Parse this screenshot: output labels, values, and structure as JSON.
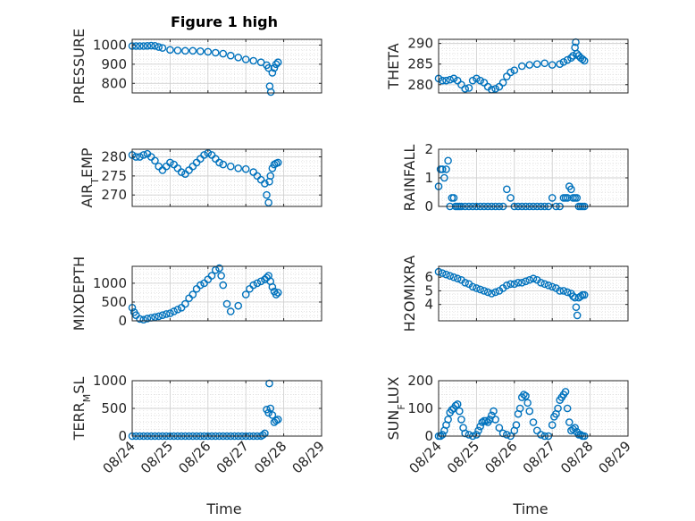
{
  "figure_title": "Figure 1 high",
  "x_tick_labels": [
    "08/24",
    "08/25",
    "08/26",
    "08/27",
    "08/28",
    "08/29"
  ],
  "x_axis_label": "Time",
  "colors": {
    "marker": "#0072BD",
    "axes": "#262626",
    "grid": "#dcdcdc"
  },
  "chart_data": [
    {
      "type": "scatter",
      "ylabel": "PRESSURE",
      "ylabel_sub": "",
      "ylabel_tail": "",
      "title": "Figure 1 high",
      "xlim": [
        0,
        5
      ],
      "ylim": [
        750,
        1030
      ],
      "yticks": [
        800,
        900,
        1000
      ],
      "x": [
        0.0,
        0.1,
        0.2,
        0.3,
        0.4,
        0.5,
        0.6,
        0.7,
        0.8,
        1.0,
        1.2,
        1.4,
        1.6,
        1.8,
        2.0,
        2.2,
        2.4,
        2.6,
        2.8,
        3.0,
        3.2,
        3.4,
        3.55,
        3.6,
        3.63,
        3.66,
        3.7,
        3.75,
        3.8,
        3.85
      ],
      "y": [
        995,
        995,
        995,
        995,
        996,
        997,
        996,
        990,
        985,
        975,
        972,
        970,
        970,
        968,
        965,
        960,
        955,
        945,
        935,
        925,
        918,
        910,
        895,
        880,
        785,
        755,
        855,
        880,
        900,
        910
      ]
    },
    {
      "type": "scatter",
      "ylabel": "THETA",
      "ylabel_sub": "",
      "ylabel_tail": "",
      "xlim": [
        0,
        5
      ],
      "ylim": [
        278,
        291
      ],
      "yticks": [
        280,
        285,
        290
      ],
      "x": [
        0.0,
        0.1,
        0.2,
        0.3,
        0.4,
        0.5,
        0.6,
        0.7,
        0.8,
        0.9,
        1.0,
        1.1,
        1.2,
        1.3,
        1.4,
        1.5,
        1.6,
        1.7,
        1.8,
        1.9,
        2.0,
        2.2,
        2.4,
        2.6,
        2.8,
        3.0,
        3.2,
        3.3,
        3.4,
        3.5,
        3.55,
        3.6,
        3.62,
        3.65,
        3.7,
        3.75,
        3.8,
        3.85
      ],
      "y": [
        281.5,
        281,
        281,
        281.2,
        281.5,
        281,
        280,
        279,
        279.2,
        281,
        281.5,
        281,
        280.5,
        279.5,
        278.8,
        279,
        279.5,
        280.5,
        282,
        283,
        283.5,
        284.5,
        284.8,
        285,
        285.2,
        284.8,
        285,
        285.5,
        286,
        286.5,
        287,
        289,
        290.3,
        287.5,
        287,
        286.5,
        286.2,
        285.8
      ]
    },
    {
      "type": "scatter",
      "ylabel": "AIR",
      "ylabel_sub": "T",
      "ylabel_tail": "EMP",
      "xlim": [
        0,
        5
      ],
      "ylim": [
        267,
        282
      ],
      "yticks": [
        270,
        275,
        280
      ],
      "x": [
        0.0,
        0.1,
        0.2,
        0.3,
        0.4,
        0.5,
        0.6,
        0.7,
        0.8,
        0.9,
        1.0,
        1.1,
        1.2,
        1.3,
        1.4,
        1.5,
        1.6,
        1.7,
        1.8,
        1.9,
        2.0,
        2.1,
        2.2,
        2.3,
        2.4,
        2.6,
        2.8,
        3.0,
        3.2,
        3.3,
        3.4,
        3.5,
        3.55,
        3.6,
        3.62,
        3.65,
        3.7,
        3.75,
        3.8,
        3.85
      ],
      "y": [
        280.5,
        280,
        280,
        280.5,
        280.8,
        280,
        279,
        277.5,
        276.5,
        277.5,
        278.5,
        278,
        277,
        276,
        275.5,
        276.5,
        277.5,
        278.5,
        279.5,
        280.5,
        281,
        280.5,
        279.5,
        278.5,
        278,
        277.5,
        277,
        276.8,
        276,
        275,
        274,
        273,
        270,
        268,
        273.5,
        275,
        277,
        278,
        278.3,
        278.5
      ]
    },
    {
      "type": "scatter",
      "ylabel": "RAINFALL",
      "ylabel_sub": "",
      "ylabel_tail": "",
      "xlim": [
        0,
        5
      ],
      "ylim": [
        0,
        2
      ],
      "yticks": [
        0,
        1,
        2
      ],
      "x": [
        0.0,
        0.05,
        0.1,
        0.15,
        0.2,
        0.25,
        0.3,
        0.35,
        0.4,
        0.45,
        0.5,
        0.55,
        0.6,
        0.7,
        0.8,
        0.9,
        1.0,
        1.1,
        1.2,
        1.3,
        1.4,
        1.5,
        1.6,
        1.7,
        1.8,
        1.9,
        2.0,
        2.1,
        2.2,
        2.3,
        2.4,
        2.5,
        2.6,
        2.7,
        2.8,
        2.9,
        3.0,
        3.1,
        3.2,
        3.3,
        3.35,
        3.4,
        3.45,
        3.5,
        3.55,
        3.6,
        3.65,
        3.7,
        3.75,
        3.8,
        3.85
      ],
      "y": [
        0.7,
        1.3,
        1.3,
        1.0,
        1.3,
        1.6,
        0,
        0.3,
        0.3,
        0,
        0,
        0,
        0,
        0,
        0,
        0,
        0,
        0,
        0,
        0,
        0,
        0,
        0,
        0,
        0.6,
        0.3,
        0,
        0,
        0,
        0,
        0,
        0,
        0,
        0,
        0,
        0,
        0.3,
        0,
        0,
        0.3,
        0.3,
        0.3,
        0.7,
        0.6,
        0.3,
        0.3,
        0.3,
        0,
        0,
        0,
        0
      ]
    },
    {
      "type": "scatter",
      "ylabel": "MIXDEPTH",
      "ylabel_sub": "",
      "ylabel_tail": "",
      "xlim": [
        0,
        5
      ],
      "ylim": [
        0,
        1450
      ],
      "yticks": [
        0,
        500,
        1000
      ],
      "x": [
        0.0,
        0.05,
        0.1,
        0.2,
        0.3,
        0.4,
        0.5,
        0.6,
        0.7,
        0.8,
        0.9,
        1.0,
        1.1,
        1.2,
        1.3,
        1.4,
        1.5,
        1.6,
        1.7,
        1.8,
        1.9,
        2.0,
        2.1,
        2.2,
        2.3,
        2.35,
        2.4,
        2.5,
        2.6,
        2.8,
        3.0,
        3.1,
        3.2,
        3.3,
        3.4,
        3.5,
        3.55,
        3.6,
        3.65,
        3.7,
        3.75,
        3.8,
        3.85
      ],
      "y": [
        350,
        230,
        150,
        50,
        30,
        60,
        80,
        100,
        120,
        150,
        180,
        200,
        250,
        300,
        350,
        450,
        600,
        700,
        850,
        950,
        1000,
        1100,
        1200,
        1350,
        1400,
        1200,
        950,
        450,
        250,
        400,
        700,
        850,
        950,
        1000,
        1050,
        1100,
        1150,
        1200,
        1050,
        900,
        780,
        700,
        750
      ]
    },
    {
      "type": "scatter",
      "ylabel": "H2OMIXRA",
      "ylabel_sub": "",
      "ylabel_tail": "",
      "xlim": [
        0,
        5
      ],
      "ylim": [
        2.8,
        6.8
      ],
      "yticks": [
        4,
        5,
        6
      ],
      "x": [
        0.0,
        0.1,
        0.2,
        0.3,
        0.4,
        0.5,
        0.6,
        0.7,
        0.8,
        0.9,
        1.0,
        1.1,
        1.2,
        1.3,
        1.4,
        1.5,
        1.6,
        1.7,
        1.8,
        1.9,
        2.0,
        2.1,
        2.2,
        2.3,
        2.4,
        2.5,
        2.6,
        2.7,
        2.8,
        2.9,
        3.0,
        3.1,
        3.2,
        3.3,
        3.4,
        3.5,
        3.55,
        3.6,
        3.63,
        3.66,
        3.7,
        3.75,
        3.8,
        3.85
      ],
      "y": [
        6.4,
        6.3,
        6.2,
        6.1,
        6.0,
        5.9,
        5.8,
        5.6,
        5.5,
        5.3,
        5.2,
        5.1,
        5.0,
        4.9,
        4.8,
        4.9,
        5.0,
        5.2,
        5.4,
        5.5,
        5.5,
        5.6,
        5.6,
        5.7,
        5.8,
        5.9,
        5.8,
        5.6,
        5.5,
        5.4,
        5.3,
        5.2,
        5.0,
        5.0,
        4.9,
        4.8,
        4.6,
        4.5,
        3.8,
        3.2,
        4.5,
        4.6,
        4.7,
        4.7
      ]
    },
    {
      "type": "scatter",
      "ylabel": "TERR",
      "ylabel_sub": "M",
      "ylabel_tail": "SL",
      "xlim": [
        0,
        5
      ],
      "ylim": [
        0,
        1000
      ],
      "yticks": [
        0,
        500,
        1000
      ],
      "x": [
        0.0,
        0.1,
        0.2,
        0.3,
        0.4,
        0.5,
        0.6,
        0.7,
        0.8,
        0.9,
        1.0,
        1.1,
        1.2,
        1.3,
        1.4,
        1.5,
        1.6,
        1.7,
        1.8,
        1.9,
        2.0,
        2.1,
        2.2,
        2.3,
        2.4,
        2.5,
        2.6,
        2.7,
        2.8,
        2.9,
        3.0,
        3.1,
        3.2,
        3.3,
        3.4,
        3.45,
        3.5,
        3.55,
        3.6,
        3.62,
        3.65,
        3.7,
        3.75,
        3.8,
        3.85
      ],
      "y": [
        0,
        0,
        0,
        0,
        0,
        0,
        0,
        0,
        0,
        0,
        0,
        0,
        0,
        0,
        0,
        0,
        0,
        0,
        0,
        0,
        0,
        0,
        0,
        0,
        0,
        0,
        0,
        0,
        0,
        0,
        0,
        0,
        0,
        0,
        0,
        20,
        50,
        480,
        420,
        950,
        500,
        380,
        250,
        280,
        300
      ]
    },
    {
      "type": "scatter",
      "ylabel": "SUN",
      "ylabel_sub": "F",
      "ylabel_tail": "LUX",
      "xlim": [
        0,
        5
      ],
      "ylim": [
        0,
        200
      ],
      "yticks": [
        0,
        100,
        200
      ],
      "x": [
        0.0,
        0.05,
        0.1,
        0.15,
        0.2,
        0.25,
        0.3,
        0.35,
        0.4,
        0.45,
        0.5,
        0.55,
        0.6,
        0.65,
        0.7,
        0.8,
        0.9,
        1.0,
        1.05,
        1.1,
        1.15,
        1.2,
        1.25,
        1.3,
        1.35,
        1.4,
        1.45,
        1.5,
        1.6,
        1.7,
        1.8,
        1.9,
        2.0,
        2.05,
        2.1,
        2.15,
        2.2,
        2.25,
        2.3,
        2.35,
        2.4,
        2.5,
        2.6,
        2.7,
        2.8,
        2.9,
        3.0,
        3.05,
        3.1,
        3.15,
        3.2,
        3.25,
        3.3,
        3.35,
        3.4,
        3.45,
        3.5,
        3.55,
        3.6,
        3.65,
        3.7,
        3.75,
        3.8,
        3.85
      ],
      "y": [
        0,
        0,
        5,
        20,
        40,
        60,
        85,
        95,
        100,
        110,
        115,
        90,
        60,
        30,
        10,
        5,
        0,
        5,
        20,
        35,
        50,
        55,
        55,
        50,
        60,
        75,
        90,
        60,
        30,
        10,
        5,
        0,
        20,
        40,
        80,
        100,
        140,
        150,
        145,
        120,
        90,
        50,
        20,
        5,
        0,
        0,
        40,
        70,
        80,
        100,
        130,
        140,
        150,
        160,
        100,
        50,
        20,
        25,
        30,
        15,
        5,
        5,
        0,
        0
      ]
    }
  ]
}
